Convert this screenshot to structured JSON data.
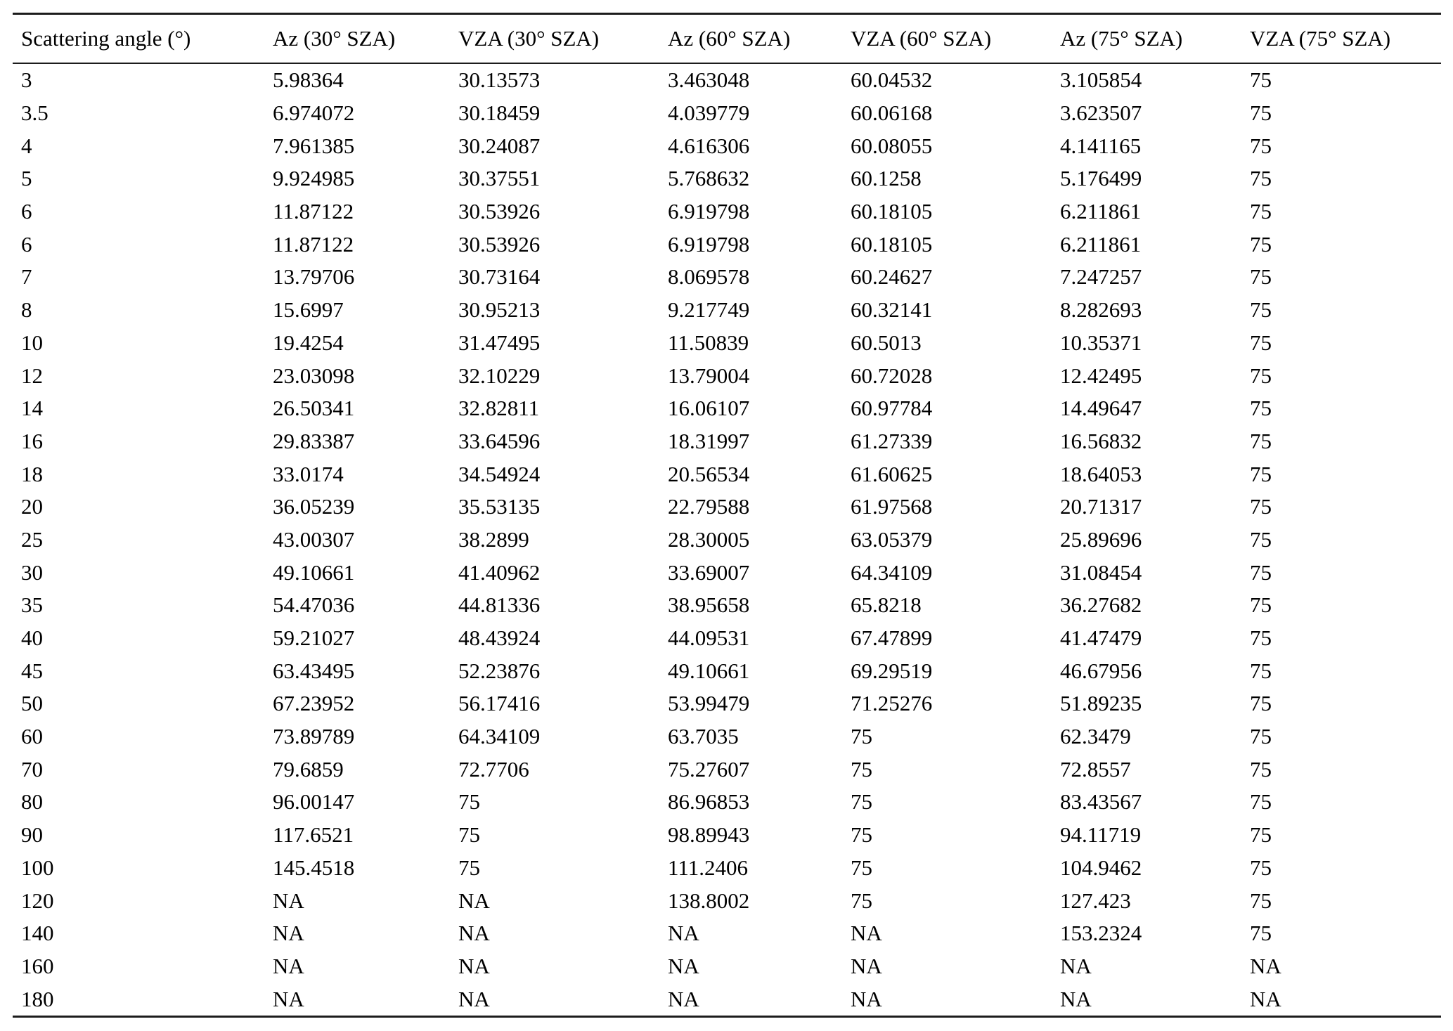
{
  "table": {
    "headers": [
      "Scattering angle (°)",
      "Az (30° SZA)",
      "VZA (30° SZA)",
      "Az (60° SZA)",
      "VZA (60° SZA)",
      "Az (75° SZA)",
      "VZA (75° SZA)"
    ],
    "rows": [
      [
        "3",
        "5.98364",
        "30.13573",
        "3.463048",
        "60.04532",
        "3.105854",
        "75"
      ],
      [
        "3.5",
        "6.974072",
        "30.18459",
        "4.039779",
        "60.06168",
        "3.623507",
        "75"
      ],
      [
        "4",
        "7.961385",
        "30.24087",
        "4.616306",
        "60.08055",
        "4.141165",
        "75"
      ],
      [
        "5",
        "9.924985",
        "30.37551",
        "5.768632",
        "60.1258",
        "5.176499",
        "75"
      ],
      [
        "6",
        "11.87122",
        "30.53926",
        "6.919798",
        "60.18105",
        "6.211861",
        "75"
      ],
      [
        "6",
        "11.87122",
        "30.53926",
        "6.919798",
        "60.18105",
        "6.211861",
        "75"
      ],
      [
        "7",
        "13.79706",
        "30.73164",
        "8.069578",
        "60.24627",
        "7.247257",
        "75"
      ],
      [
        "8",
        "15.6997",
        "30.95213",
        "9.217749",
        "60.32141",
        "8.282693",
        "75"
      ],
      [
        "10",
        "19.4254",
        "31.47495",
        "11.50839",
        "60.5013",
        "10.35371",
        "75"
      ],
      [
        "12",
        "23.03098",
        "32.10229",
        "13.79004",
        "60.72028",
        "12.42495",
        "75"
      ],
      [
        "14",
        "26.50341",
        "32.82811",
        "16.06107",
        "60.97784",
        "14.49647",
        "75"
      ],
      [
        "16",
        "29.83387",
        "33.64596",
        "18.31997",
        "61.27339",
        "16.56832",
        "75"
      ],
      [
        "18",
        "33.0174",
        "34.54924",
        "20.56534",
        "61.60625",
        "18.64053",
        "75"
      ],
      [
        "20",
        "36.05239",
        "35.53135",
        "22.79588",
        "61.97568",
        "20.71317",
        "75"
      ],
      [
        "25",
        "43.00307",
        "38.2899",
        "28.30005",
        "63.05379",
        "25.89696",
        "75"
      ],
      [
        "30",
        "49.10661",
        "41.40962",
        "33.69007",
        "64.34109",
        "31.08454",
        "75"
      ],
      [
        "35",
        "54.47036",
        "44.81336",
        "38.95658",
        "65.8218",
        "36.27682",
        "75"
      ],
      [
        "40",
        "59.21027",
        "48.43924",
        "44.09531",
        "67.47899",
        "41.47479",
        "75"
      ],
      [
        "45",
        "63.43495",
        "52.23876",
        "49.10661",
        "69.29519",
        "46.67956",
        "75"
      ],
      [
        "50",
        "67.23952",
        "56.17416",
        "53.99479",
        "71.25276",
        "51.89235",
        "75"
      ],
      [
        "60",
        "73.89789",
        "64.34109",
        "63.7035",
        "75",
        "62.3479",
        "75"
      ],
      [
        "70",
        "79.6859",
        "72.7706",
        "75.27607",
        "75",
        "72.8557",
        "75"
      ],
      [
        "80",
        "96.00147",
        "75",
        "86.96853",
        "75",
        "83.43567",
        "75"
      ],
      [
        "90",
        "117.6521",
        "75",
        "98.89943",
        "75",
        "94.11719",
        "75"
      ],
      [
        "100",
        "145.4518",
        "75",
        "111.2406",
        "75",
        "104.9462",
        "75"
      ],
      [
        "120",
        "NA",
        "NA",
        "138.8002",
        "75",
        "127.423",
        "75"
      ],
      [
        "140",
        "NA",
        "NA",
        "NA",
        "NA",
        "153.2324",
        "75"
      ],
      [
        "160",
        "NA",
        "NA",
        "NA",
        "NA",
        "NA",
        "NA"
      ],
      [
        "180",
        "NA",
        "NA",
        "NA",
        "NA",
        "NA",
        "NA"
      ]
    ]
  }
}
